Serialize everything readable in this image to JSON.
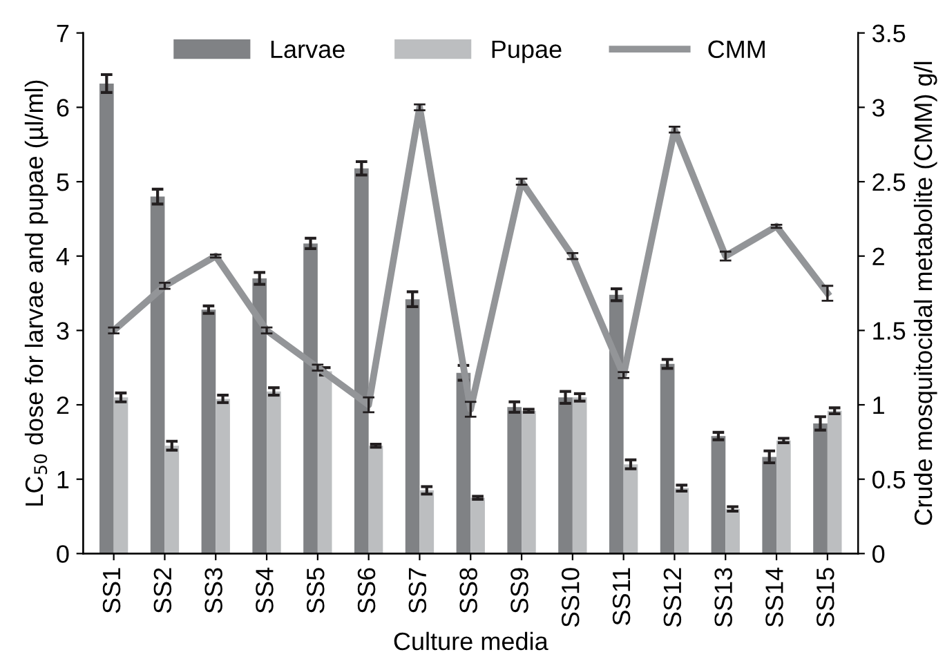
{
  "chart_data": {
    "type": "bar",
    "xlabel": "Culture media",
    "ylabel": "LC$_{50}$ dose for larvae and pupae (µl/ml)",
    "y2label": "Crude mosquitocidal metabolite (CMM) g/l",
    "categories": [
      "SS1",
      "SS2",
      "SS3",
      "SS4",
      "SS5",
      "SS6",
      "SS7",
      "SS8",
      "SS9",
      "SS10",
      "SS11",
      "SS12",
      "SS13",
      "SS14",
      "SS15"
    ],
    "series": [
      {
        "name": "Larvae",
        "color": "#808285",
        "values": [
          6.32,
          4.8,
          3.28,
          3.7,
          4.17,
          5.18,
          3.42,
          2.43,
          1.97,
          2.1,
          3.48,
          2.55,
          1.58,
          1.3,
          1.75
        ],
        "errors": [
          0.12,
          0.1,
          0.05,
          0.08,
          0.07,
          0.09,
          0.1,
          0.1,
          0.07,
          0.08,
          0.08,
          0.06,
          0.05,
          0.08,
          0.09
        ]
      },
      {
        "name": "Pupae",
        "color": "#bcbec0",
        "values": [
          2.1,
          1.45,
          2.08,
          2.18,
          2.45,
          1.45,
          0.85,
          0.75,
          1.92,
          2.1,
          1.2,
          0.88,
          0.6,
          1.52,
          1.92
        ],
        "errors": [
          0.06,
          0.06,
          0.05,
          0.05,
          0.05,
          0.02,
          0.05,
          0.02,
          0.02,
          0.05,
          0.06,
          0.04,
          0.03,
          0.03,
          0.04
        ]
      },
      {
        "name": "CMM",
        "type": "line",
        "axis": "y2",
        "color": "#939598",
        "values": [
          1.5,
          1.8,
          2.0,
          1.5,
          1.25,
          1.0,
          3.0,
          0.97,
          2.5,
          2.0,
          1.2,
          2.85,
          2.0,
          2.2,
          1.75
        ],
        "errors": [
          0.02,
          0.02,
          0.01,
          0.02,
          0.02,
          0.05,
          0.02,
          0.05,
          0.02,
          0.02,
          0.02,
          0.02,
          0.03,
          0.01,
          0.05
        ]
      }
    ],
    "ylim": [
      0,
      7
    ],
    "yticks": [
      0,
      1,
      2,
      3,
      4,
      5,
      6,
      7
    ],
    "y2lim": [
      0,
      3.5
    ],
    "y2ticks": [
      0,
      0.5,
      1,
      1.5,
      2,
      2.5,
      3,
      3.5
    ],
    "legend": "top",
    "grid": false,
    "marker": "none",
    "line_style": "solid"
  }
}
